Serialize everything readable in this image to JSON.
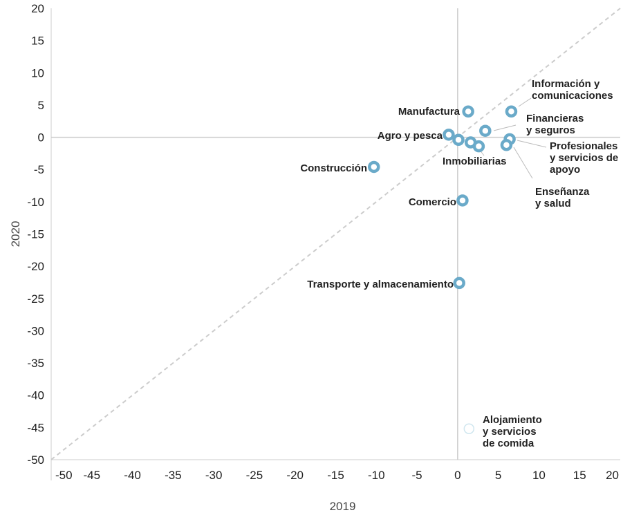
{
  "chart_data": {
    "type": "scatter",
    "xlabel": "2019",
    "ylabel": "2020",
    "xlim": [
      -50,
      20
    ],
    "ylim": [
      -50,
      20
    ],
    "x_ticks": [
      "-50",
      "-45",
      "-40",
      "-35",
      "-30",
      "-25",
      "-20",
      "-15",
      "-10",
      "-5",
      "0",
      "5",
      "10",
      "15",
      "20"
    ],
    "y_ticks": [
      "20",
      "15",
      "10",
      "5",
      "0",
      "-5",
      "-10",
      "-15",
      "-20",
      "-25",
      "-30",
      "-35",
      "-40",
      "-45",
      "-50"
    ],
    "reference_line": "y = x",
    "grid": false,
    "marker_color": "#6aaac9",
    "points": [
      {
        "label_lines": [
          "Información y",
          "comunicaciones"
        ],
        "x": 6.6,
        "y": 4.0
      },
      {
        "label_lines": [
          "Manufactura"
        ],
        "x": 1.3,
        "y": 4.0
      },
      {
        "label_lines": [
          "Financieras",
          "y seguros"
        ],
        "x": 3.4,
        "y": 1.0
      },
      {
        "label_lines": [
          "Agro y pesca"
        ],
        "x": -1.1,
        "y": 0.4
      },
      {
        "label_lines": [],
        "x": 0.1,
        "y": -0.4
      },
      {
        "label_lines": [],
        "x": 1.6,
        "y": -0.8
      },
      {
        "label_lines": [
          "Inmobiliarias"
        ],
        "x": 2.6,
        "y": -1.4
      },
      {
        "label_lines": [
          "Profesionales",
          "y servicios de",
          "apoyo"
        ],
        "x": 6.4,
        "y": -0.3
      },
      {
        "label_lines": [
          "Enseñanza",
          "y salud"
        ],
        "x": 6.0,
        "y": -1.2
      },
      {
        "label_lines": [
          "Construcción"
        ],
        "x": -10.3,
        "y": -4.6
      },
      {
        "label_lines": [
          "Comercio"
        ],
        "x": 0.6,
        "y": -9.8
      },
      {
        "label_lines": [
          "Transporte y almacenamiento"
        ],
        "x": 0.2,
        "y": -22.6
      },
      {
        "label_lines": [
          "Alojamiento",
          "y servicios",
          "de comida"
        ],
        "x": 1.4,
        "y": -45.2,
        "faded": true
      }
    ]
  }
}
